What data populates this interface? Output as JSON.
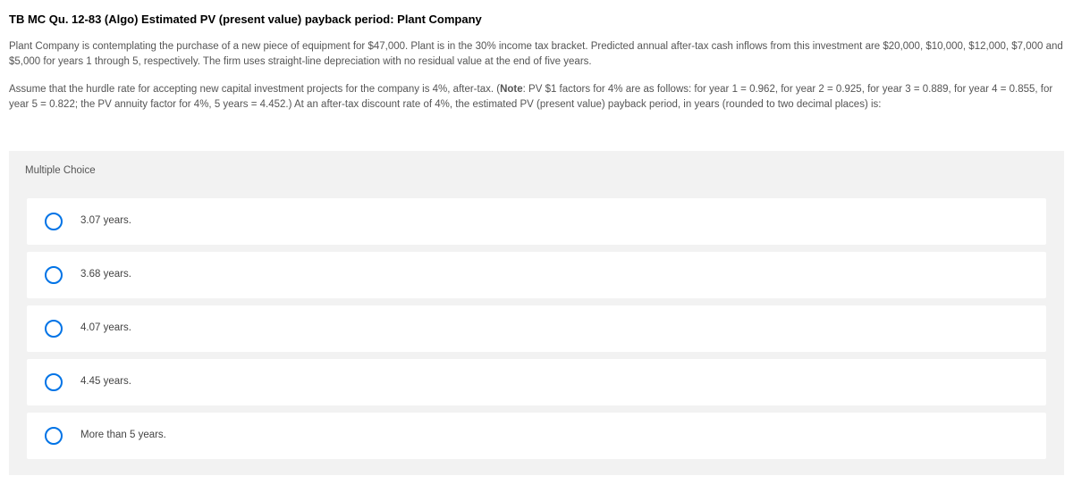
{
  "colors": {
    "background": "#ffffff",
    "panel_bg": "#f2f2f2",
    "option_bg": "#ffffff",
    "radio_border": "#0073e6",
    "text_primary": "#333333",
    "text_secondary": "#555555",
    "header_text": "#000000"
  },
  "typography": {
    "base_font": "Helvetica Neue, Arial, sans-serif",
    "header_size_pt": 13,
    "body_size_pt": 11.5,
    "header_weight": 700
  },
  "question": {
    "title": "TB MC Qu. 12-83 (Algo) Estimated PV (present value) payback period: Plant Company",
    "paragraph1": "Plant Company is contemplating the purchase of a new piece of equipment for $47,000. Plant is in the 30% income tax bracket. Predicted annual after-tax cash inflows from this investment are $20,000, $10,000, $12,000, $7,000 and $5,000 for years 1 through 5, respectively. The firm uses straight-line depreciation with no residual value at the end of five years.",
    "paragraph2_pre": "Assume that the hurdle rate for accepting new capital investment projects for the company is 4%, after-tax. (",
    "paragraph2_bold": "Note",
    "paragraph2_post": ": PV $1 factors for 4% are as follows: for year 1 = 0.962, for year 2 = 0.925, for year 3 = 0.889, for year 4 = 0.855, for year 5 = 0.822; the PV annuity factor for 4%, 5 years = 4.452.) At an after-tax discount rate of 4%, the estimated PV (present value) payback period, in years (rounded to two decimal places) is:"
  },
  "multiple_choice": {
    "label": "Multiple Choice",
    "options": [
      {
        "text": "3.07 years."
      },
      {
        "text": "3.68 years."
      },
      {
        "text": "4.07 years."
      },
      {
        "text": "4.45 years."
      },
      {
        "text": "More than 5 years."
      }
    ]
  }
}
